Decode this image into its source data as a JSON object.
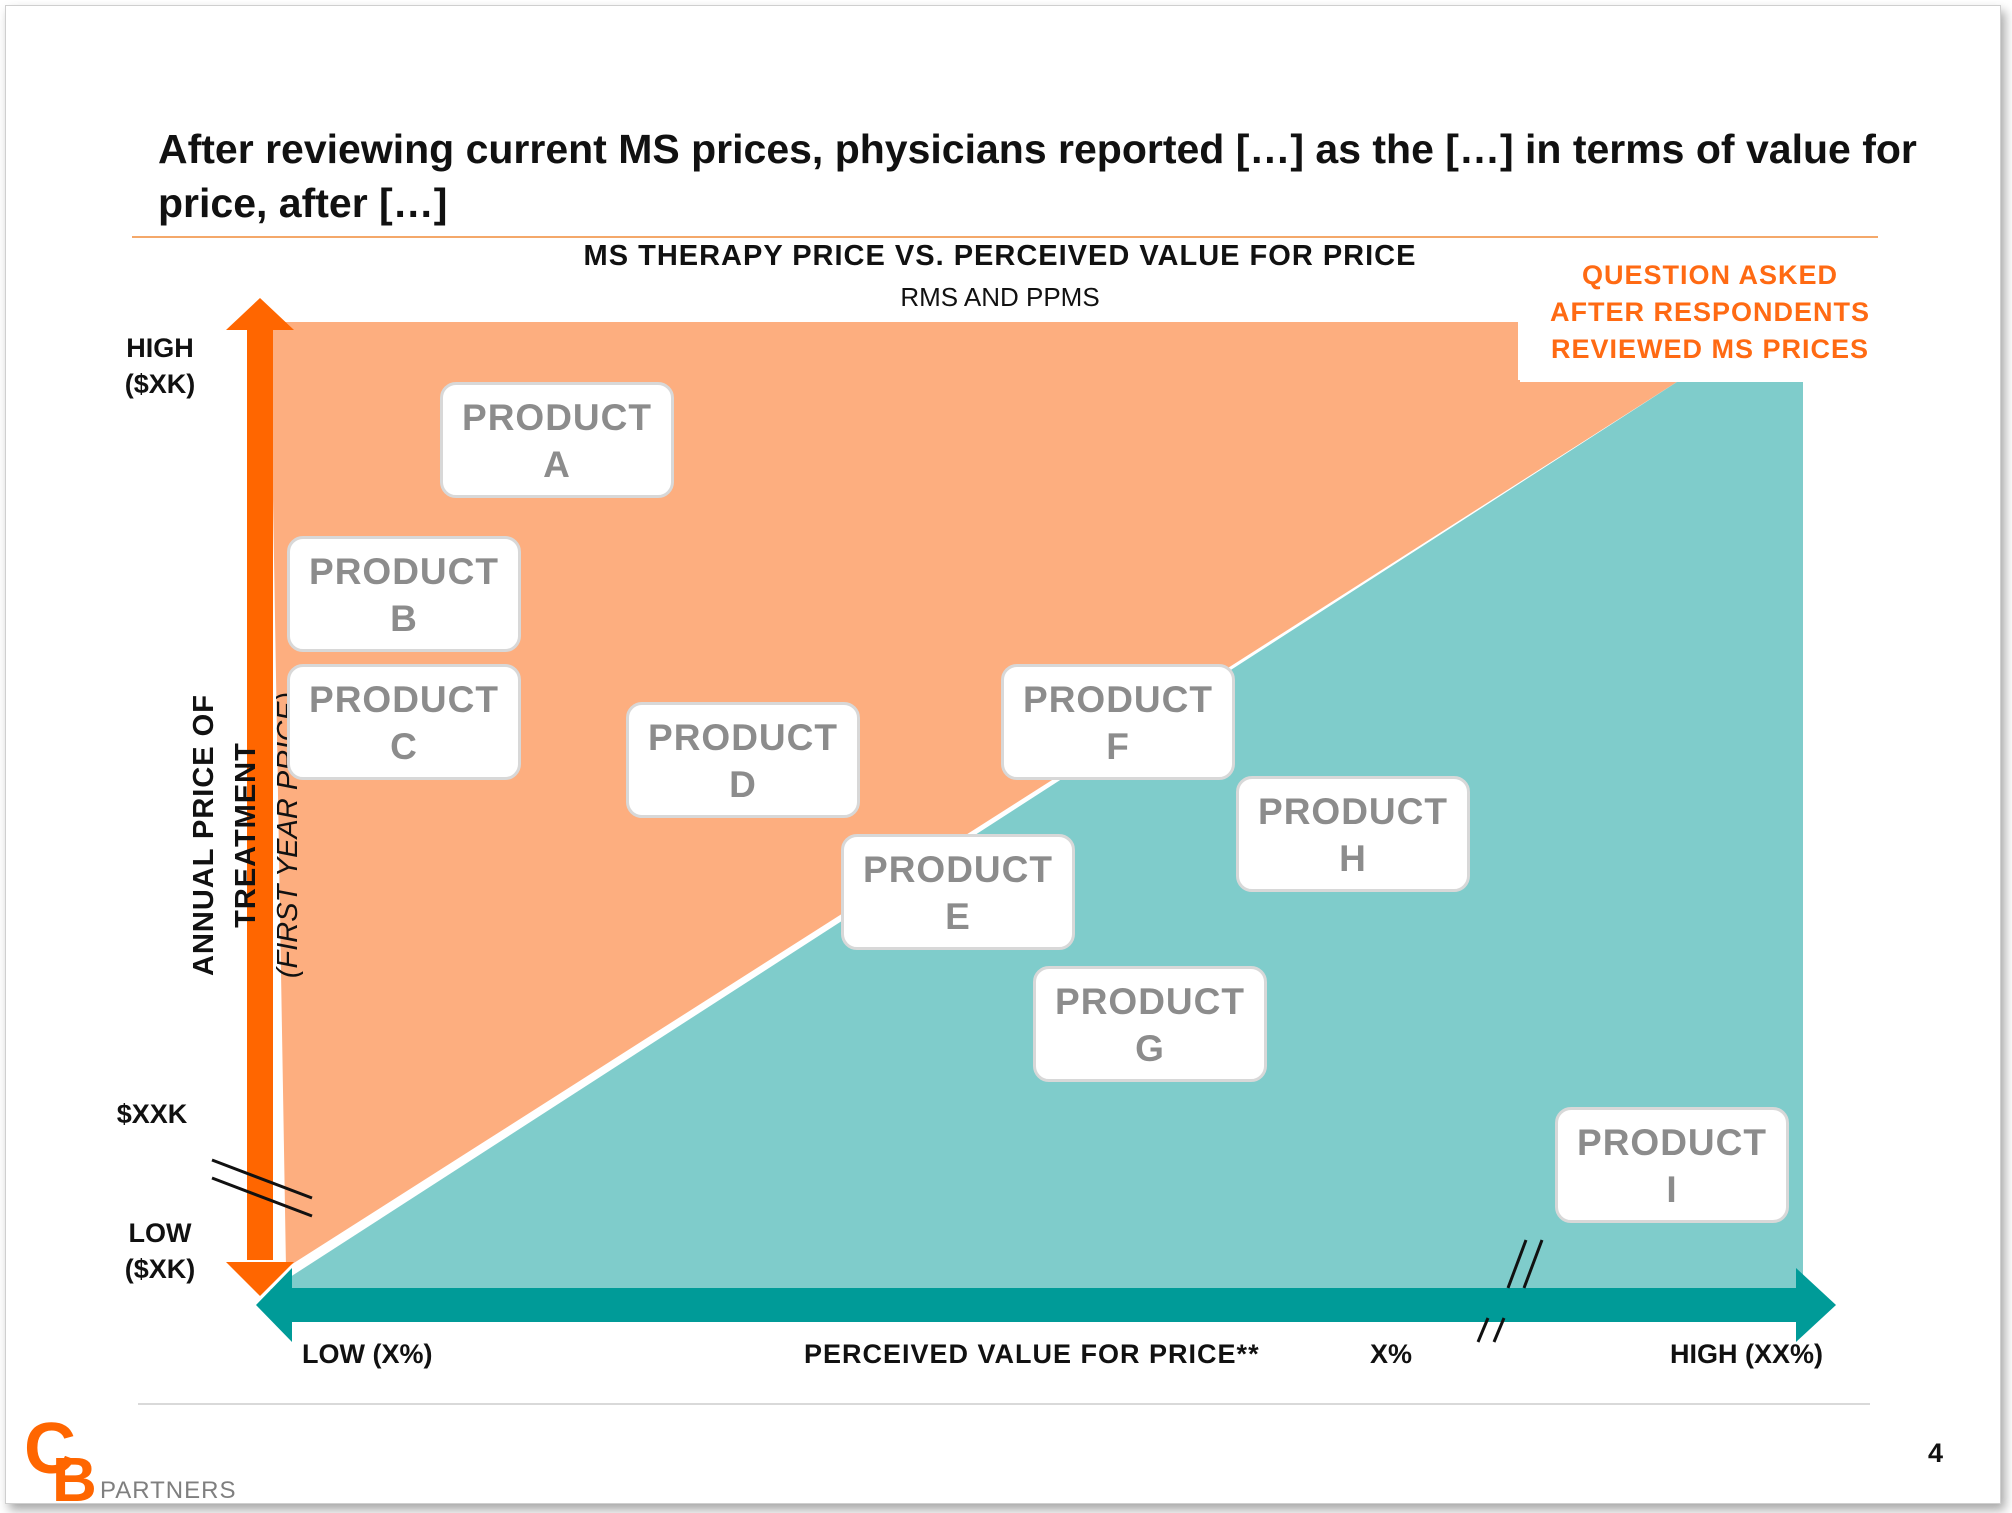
{
  "title": "After reviewing current MS prices, physicians reported […] as the […] in terms of value for price, after […]",
  "chart": {
    "title": "MS THERAPY PRICE VS. PERCEIVED VALUE FOR PRICE",
    "subtitle": "RMS AND PPMS",
    "note": [
      "QUESTION ASKED",
      "AFTER RESPONDENTS",
      "REVIEWED MS PRICES"
    ],
    "y_axis": {
      "label": "ANNUAL PRICE OF TREATMENT",
      "sublabel": "(FIRST YEAR PRICE)",
      "high": [
        "HIGH",
        "($XK)"
      ],
      "mid": "$XXK",
      "low": [
        "LOW",
        "($XK)"
      ]
    },
    "x_axis": {
      "low": "LOW (X%)",
      "label": "PERCEIVED VALUE FOR PRICE**",
      "mid": "X%",
      "high": "HIGH (XX%)"
    },
    "colors": {
      "upper_region": "#fdae7f",
      "lower_region": "#7fcccb",
      "y_axis_arrow": "#ff6600",
      "x_axis_arrow": "#009b98",
      "note_text": "#ff6a13"
    },
    "products": [
      {
        "line1": "PRODUCT",
        "line2": "A"
      },
      {
        "line1": "PRODUCT",
        "line2": "B"
      },
      {
        "line1": "PRODUCT",
        "line2": "C"
      },
      {
        "line1": "PRODUCT",
        "line2": "D"
      },
      {
        "line1": "PRODUCT",
        "line2": "E"
      },
      {
        "line1": "PRODUCT",
        "line2": "F"
      },
      {
        "line1": "PRODUCT",
        "line2": "G"
      },
      {
        "line1": "PRODUCT",
        "line2": "H"
      },
      {
        "line1": "PRODUCT",
        "line2": "I"
      }
    ]
  },
  "footer": {
    "logo_text": "CB",
    "logo_sub": "PARTNERS",
    "page_number": "4"
  }
}
